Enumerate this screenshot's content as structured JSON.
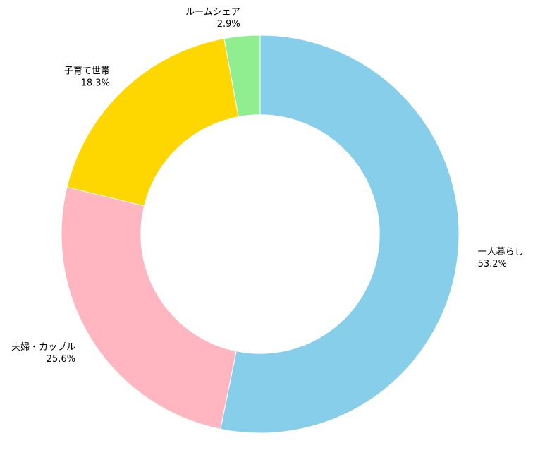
{
  "chart_data": {
    "type": "donut",
    "title": "",
    "categories": [
      "一人暮らし",
      "夫婦・カップル",
      "子育て世帯",
      "ルームシェア"
    ],
    "values": [
      53.2,
      25.6,
      18.3,
      2.9
    ],
    "value_labels": [
      "53.2%",
      "25.6%",
      "18.3%",
      "2.9%"
    ],
    "colors": [
      "#87CEEB",
      "#FFB6C1",
      "#FFD700",
      "#90EE90"
    ],
    "start_angle_deg": 90,
    "direction": "clockwise",
    "inner_radius_ratio": 0.6,
    "legend": "none"
  }
}
